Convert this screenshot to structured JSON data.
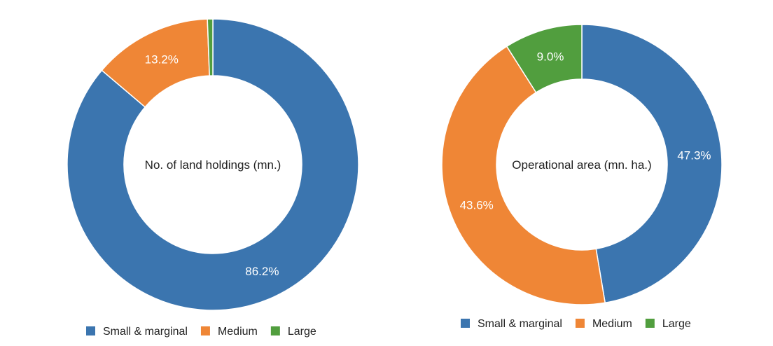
{
  "colors": {
    "Small & marginal": "#3b75af",
    "Medium": "#ef8636",
    "Large": "#519e3e"
  },
  "chart_data": [
    {
      "type": "pie",
      "donut": true,
      "center_label": "No. of land holdings (mn.)",
      "categories": [
        "Small & marginal",
        "Medium",
        "Large"
      ],
      "values": [
        86.2,
        13.2,
        0.6
      ],
      "data_labels": [
        "86.2%",
        "13.2%",
        ""
      ],
      "legend": "bottom"
    },
    {
      "type": "pie",
      "donut": true,
      "center_label": "Operational area (mn. ha.)",
      "categories": [
        "Small & marginal",
        "Medium",
        "Large"
      ],
      "values": [
        47.3,
        43.6,
        9.0
      ],
      "data_labels": [
        "47.3%",
        "43.6%",
        "9.0%"
      ],
      "legend": "bottom"
    }
  ]
}
